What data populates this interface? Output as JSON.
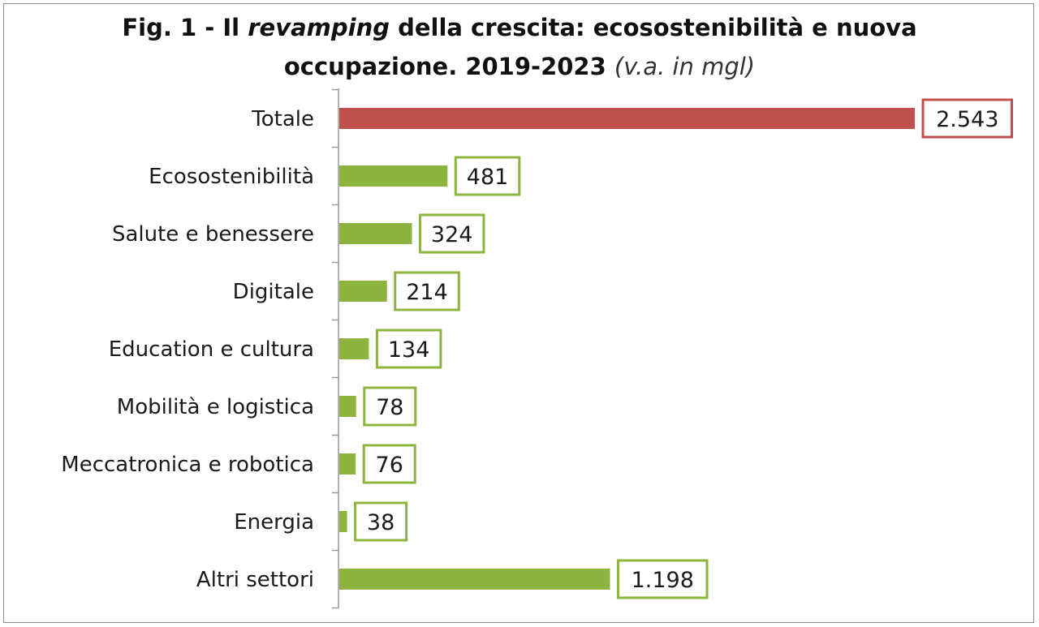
{
  "title": {
    "prefix": "Fig. 1 - Il ",
    "italic_word": "revamping",
    "line1_rest": " della crescita: ecosostenibilità e nuova",
    "line2": "occupazione. 2019-2023 ",
    "unit": "(v.a. in mgl)"
  },
  "chart_data": {
    "type": "bar",
    "orientation": "horizontal",
    "categories": [
      "Totale",
      "Ecosostenibilità",
      "Salute e benessere",
      "Digitale",
      "Education e cultura",
      "Mobilità e logistica",
      "Meccatronica e robotica",
      "Energia",
      "Altri settori"
    ],
    "values": [
      2543,
      481,
      324,
      214,
      134,
      78,
      76,
      38,
      1198
    ],
    "value_labels": [
      "2.543",
      "481",
      "324",
      "214",
      "134",
      "78",
      "76",
      "38",
      "1.198"
    ],
    "xlim": [
      0,
      2543
    ],
    "grid": false,
    "legend": "none",
    "colors": {
      "highlight": "#c0504d",
      "bars": "#8db43e",
      "highlight_border": "#c0504d",
      "bars_border": "#8db43e",
      "axis": "#999999"
    }
  }
}
